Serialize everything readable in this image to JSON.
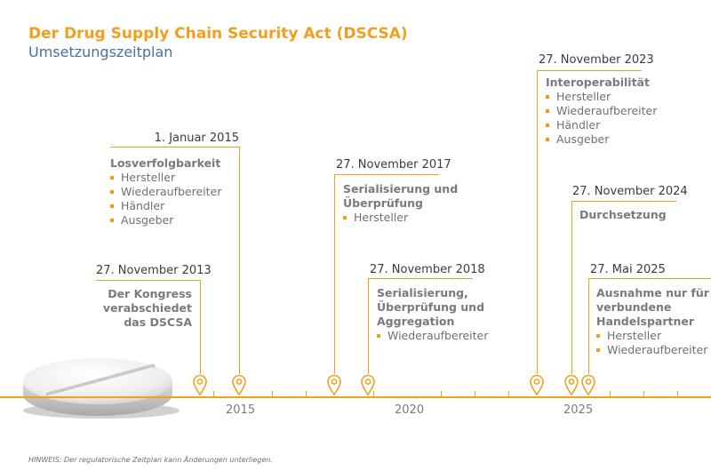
{
  "header": {
    "title": "Der Drug Supply Chain Security Act (DSCSA)",
    "subtitle": "Umsetzungszeitplan"
  },
  "events": [
    {
      "date": "27. November 2013",
      "headline_lines": [
        "Der Kongress",
        "verabschiedet",
        "das DSCSA"
      ],
      "items": []
    },
    {
      "date": "1. Januar 2015",
      "headline_lines": [
        "Losverfolgbarkeit"
      ],
      "items": [
        "Hersteller",
        "Wiederaufbereiter",
        "Händler",
        "Ausgeber"
      ]
    },
    {
      "date": "27. November 2017",
      "headline_lines": [
        "Serialisierung und",
        "Überprüfung"
      ],
      "items": [
        "Hersteller"
      ]
    },
    {
      "date": "27. November 2018",
      "headline_lines": [
        "Serialisierung,",
        "Überprüfung und",
        "Aggregation"
      ],
      "items": [
        "Wiederaufbereiter"
      ]
    },
    {
      "date": "27. November 2023",
      "headline_lines": [
        "Interoperabilität"
      ],
      "items": [
        "Hersteller",
        "Wiederaufbereiter",
        "Händler",
        "Ausgeber"
      ]
    },
    {
      "date": "27. November 2024",
      "headline_lines": [
        "Durchsetzung"
      ],
      "items": []
    },
    {
      "date": "27. Mai 2025",
      "headline_lines": [
        "Ausnahme nur für",
        "verbundene",
        "Handelspartner"
      ],
      "items": [
        "Hersteller",
        "Wiederaufbereiter"
      ]
    }
  ],
  "axis": {
    "year_labels": [
      "2015",
      "2020",
      "2025"
    ]
  },
  "footer": {
    "note": "HINWEIS: Der regulatorische Zeitplan kann Änderungen unterliegen."
  },
  "colors": {
    "accent": "#f0a01c",
    "subtitle": "#4a6fa5",
    "text": "#707070"
  },
  "icons": {
    "marker": "location-pin-icon",
    "bullet": "square-bullet-icon",
    "pill": "pill-image"
  }
}
